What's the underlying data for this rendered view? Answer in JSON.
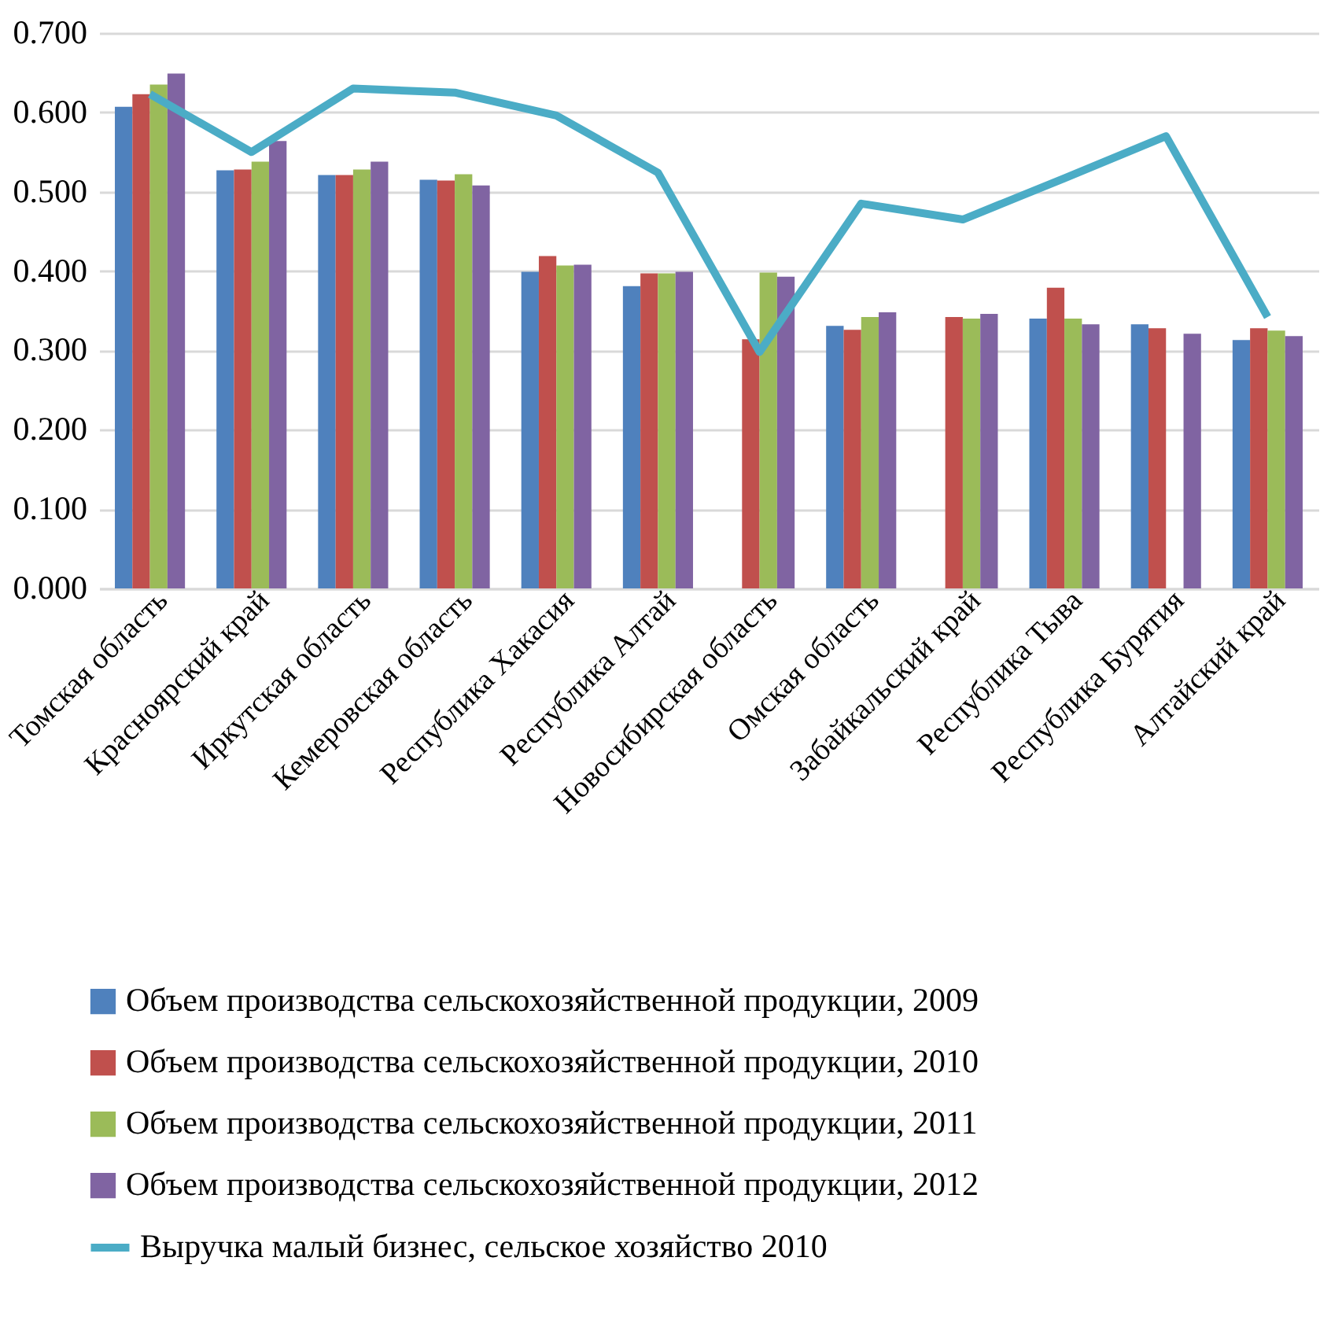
{
  "chart_data": {
    "type": "bar",
    "categories": [
      "Томская область",
      "Красноярский край",
      "Иркутская область",
      "Кемеровская область",
      "Республика Хакасия",
      "Республика Алтай",
      "Новосибирская область",
      "Омская область",
      "Забайкальский край",
      "Республика Тыва",
      "Республика Бурятия",
      "Алтайский край"
    ],
    "series": [
      {
        "name": "Объем производства сельскохозяйственной продукции, 2009",
        "color": "#4f81bd",
        "values": [
          0.607,
          0.527,
          0.521,
          0.515,
          0.399,
          0.381,
          null,
          0.331,
          null,
          0.34,
          0.333,
          0.313
        ]
      },
      {
        "name": "Объем производства сельскохозяйственной продукции, 2010",
        "color": "#c0504d",
        "values": [
          0.623,
          0.528,
          0.521,
          0.514,
          0.419,
          0.397,
          0.314,
          0.326,
          0.342,
          0.379,
          0.328,
          0.328
        ]
      },
      {
        "name": "Объем производства сельскохозяйственной продукции, 2011",
        "color": "#9bbb59",
        "values": [
          0.635,
          0.538,
          0.528,
          0.522,
          0.407,
          0.397,
          0.398,
          0.342,
          0.34,
          0.34,
          null,
          0.325
        ]
      },
      {
        "name": "Объем производства сельскохозяйственной продукции, 2012",
        "color": "#8064a2",
        "values": [
          0.649,
          0.564,
          0.538,
          0.508,
          0.408,
          0.399,
          0.393,
          0.348,
          0.346,
          0.333,
          0.321,
          0.318
        ]
      },
      {
        "name": "Выручка малый бизнес, сельское хозяйство 2010",
        "type": "line",
        "color": "#4bacc6",
        "values": [
          0.623,
          0.55,
          0.63,
          0.625,
          0.596,
          0.524,
          0.298,
          0.485,
          0.465,
          0.517,
          0.57,
          0.342
        ]
      }
    ],
    "ylim": [
      0,
      0.7
    ],
    "yticks": [
      {
        "value": 0,
        "label": "0.000"
      },
      {
        "value": 0.1,
        "label": "0.100"
      },
      {
        "value": 0.2,
        "label": "0.200"
      },
      {
        "value": 0.3,
        "label": "0.300"
      },
      {
        "value": 0.4,
        "label": "0.400"
      },
      {
        "value": 0.5,
        "label": "0.500"
      },
      {
        "value": 0.6,
        "label": "0.600"
      },
      {
        "value": 0.7,
        "label": "0.700"
      }
    ],
    "grid": "y",
    "legend": "bottom",
    "line_style": "solid"
  }
}
